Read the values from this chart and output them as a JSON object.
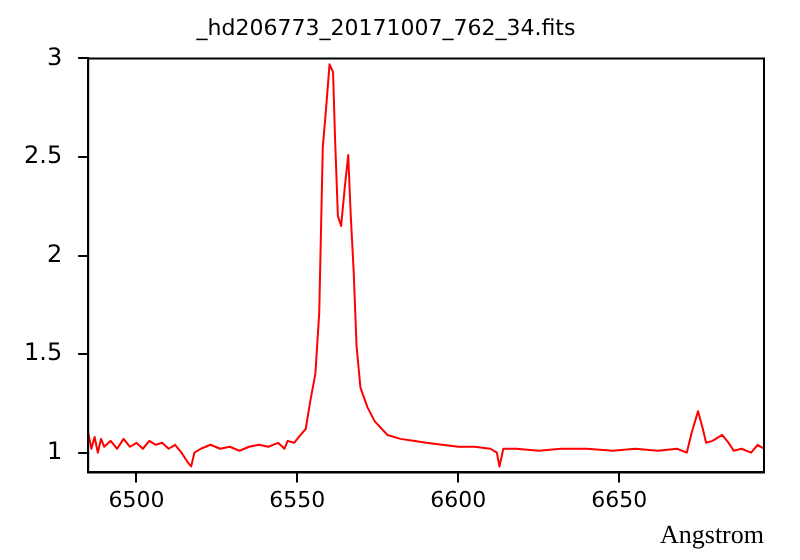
{
  "chart_data": {
    "type": "line",
    "title": "_hd206773_20171007_762_34.fits",
    "xlabel": "Angstrom",
    "x": [
      6485,
      6486,
      6487,
      6488,
      6489,
      6490,
      6492,
      6494,
      6496,
      6498,
      6500,
      6502,
      6504,
      6506,
      6508,
      6510,
      6512,
      6514,
      6516,
      6517,
      6518,
      6520,
      6523,
      6526,
      6529,
      6532,
      6535,
      6538,
      6541,
      6544,
      6546,
      6547,
      6549,
      6551,
      6552.6,
      6554,
      6555.6,
      6556.8,
      6557.9,
      6558.9,
      6560,
      6561.1,
      6561.7,
      6562.6,
      6563.6,
      6564.7,
      6565.8,
      6566.6,
      6567.5,
      6568.4,
      6569.6,
      6571.8,
      6574,
      6578,
      6582,
      6586,
      6590,
      6595,
      6600,
      6605,
      6610,
      6612,
      6612.8,
      6614,
      6618,
      6625,
      6632,
      6640,
      6648,
      6655,
      6662,
      6668,
      6671,
      6672.5,
      6674.5,
      6676,
      6677,
      6679,
      6682,
      6684,
      6685.6,
      6688,
      6691,
      6693,
      6695
    ],
    "values": [
      1.1,
      1.02,
      1.08,
      1.0,
      1.07,
      1.03,
      1.06,
      1.02,
      1.07,
      1.03,
      1.05,
      1.02,
      1.06,
      1.04,
      1.05,
      1.02,
      1.04,
      1.0,
      0.95,
      0.93,
      1.0,
      1.02,
      1.04,
      1.02,
      1.03,
      1.01,
      1.03,
      1.04,
      1.03,
      1.05,
      1.02,
      1.06,
      1.05,
      1.09,
      1.12,
      1.26,
      1.4,
      1.71,
      2.55,
      2.74,
      2.97,
      2.93,
      2.6,
      2.2,
      2.15,
      2.34,
      2.51,
      2.2,
      1.92,
      1.54,
      1.33,
      1.23,
      1.16,
      1.09,
      1.07,
      1.06,
      1.05,
      1.04,
      1.03,
      1.03,
      1.02,
      1.0,
      0.93,
      1.02,
      1.02,
      1.01,
      1.02,
      1.02,
      1.01,
      1.02,
      1.01,
      1.02,
      1.0,
      1.1,
      1.21,
      1.12,
      1.05,
      1.06,
      1.09,
      1.05,
      1.01,
      1.02,
      1.0,
      1.04,
      1.02
    ],
    "color": "#ff0000",
    "xlim": [
      6485,
      6695
    ],
    "xticks": [
      6500,
      6550,
      6600,
      6650
    ],
    "ylim": [
      0.9,
      3
    ],
    "yticks": [
      1,
      1.5,
      2,
      2.5,
      3
    ],
    "grid": false,
    "legend": false,
    "marker": "none",
    "line_style": "solid"
  }
}
